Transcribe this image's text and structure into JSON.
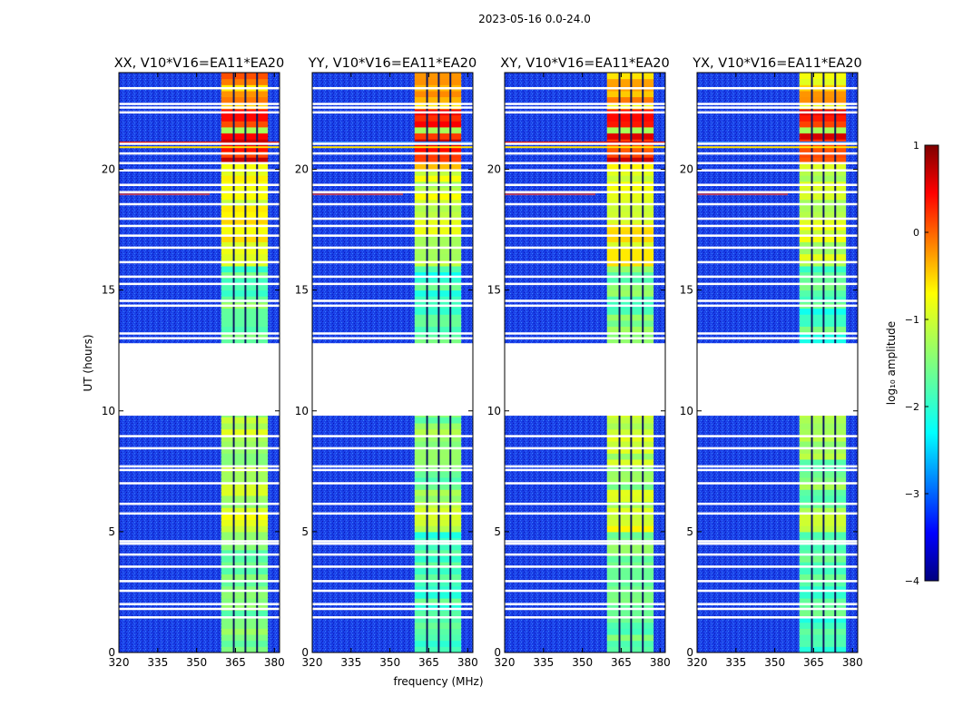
{
  "figure": {
    "suptitle": "2023-05-16 0.0-24.0",
    "ylabel": "UT (hours)",
    "xlabel": "frequency (MHz)"
  },
  "chart_data": {
    "type": "heatmap",
    "description_panels": "dynamic spectrum, log10 amplitude vs frequency and UT",
    "xlim": [
      320,
      382
    ],
    "ylim": [
      0,
      24
    ],
    "xticks": [
      320,
      335,
      350,
      365,
      380
    ],
    "yticks": [
      0,
      5,
      10,
      15,
      20
    ],
    "xlabel": "frequency (MHz)",
    "ylabel": "UT (hours)",
    "panels": [
      {
        "title": "XX, V10*V16=EA11*EA20"
      },
      {
        "title": "YY, V10*V16=EA11*EA20"
      },
      {
        "title": "XY, V10*V16=EA11*EA20"
      },
      {
        "title": "YX, V10*V16=EA11*EA20"
      }
    ],
    "data_gap_hours": [
      9.8,
      12.8
    ],
    "active_band_mhz": [
      359.5,
      377.5
    ],
    "active_subbands_mhz": [
      [
        359.5,
        364.0
      ],
      [
        364.5,
        368.5
      ],
      [
        369.0,
        373.0
      ],
      [
        373.5,
        377.5
      ]
    ],
    "colorbar": {
      "label": "log₁₀ amplitude",
      "range": [
        -4,
        1
      ],
      "ticks": [
        "1",
        "0",
        "−1",
        "−2",
        "−3",
        "−4"
      ],
      "colormap": "jet"
    }
  }
}
